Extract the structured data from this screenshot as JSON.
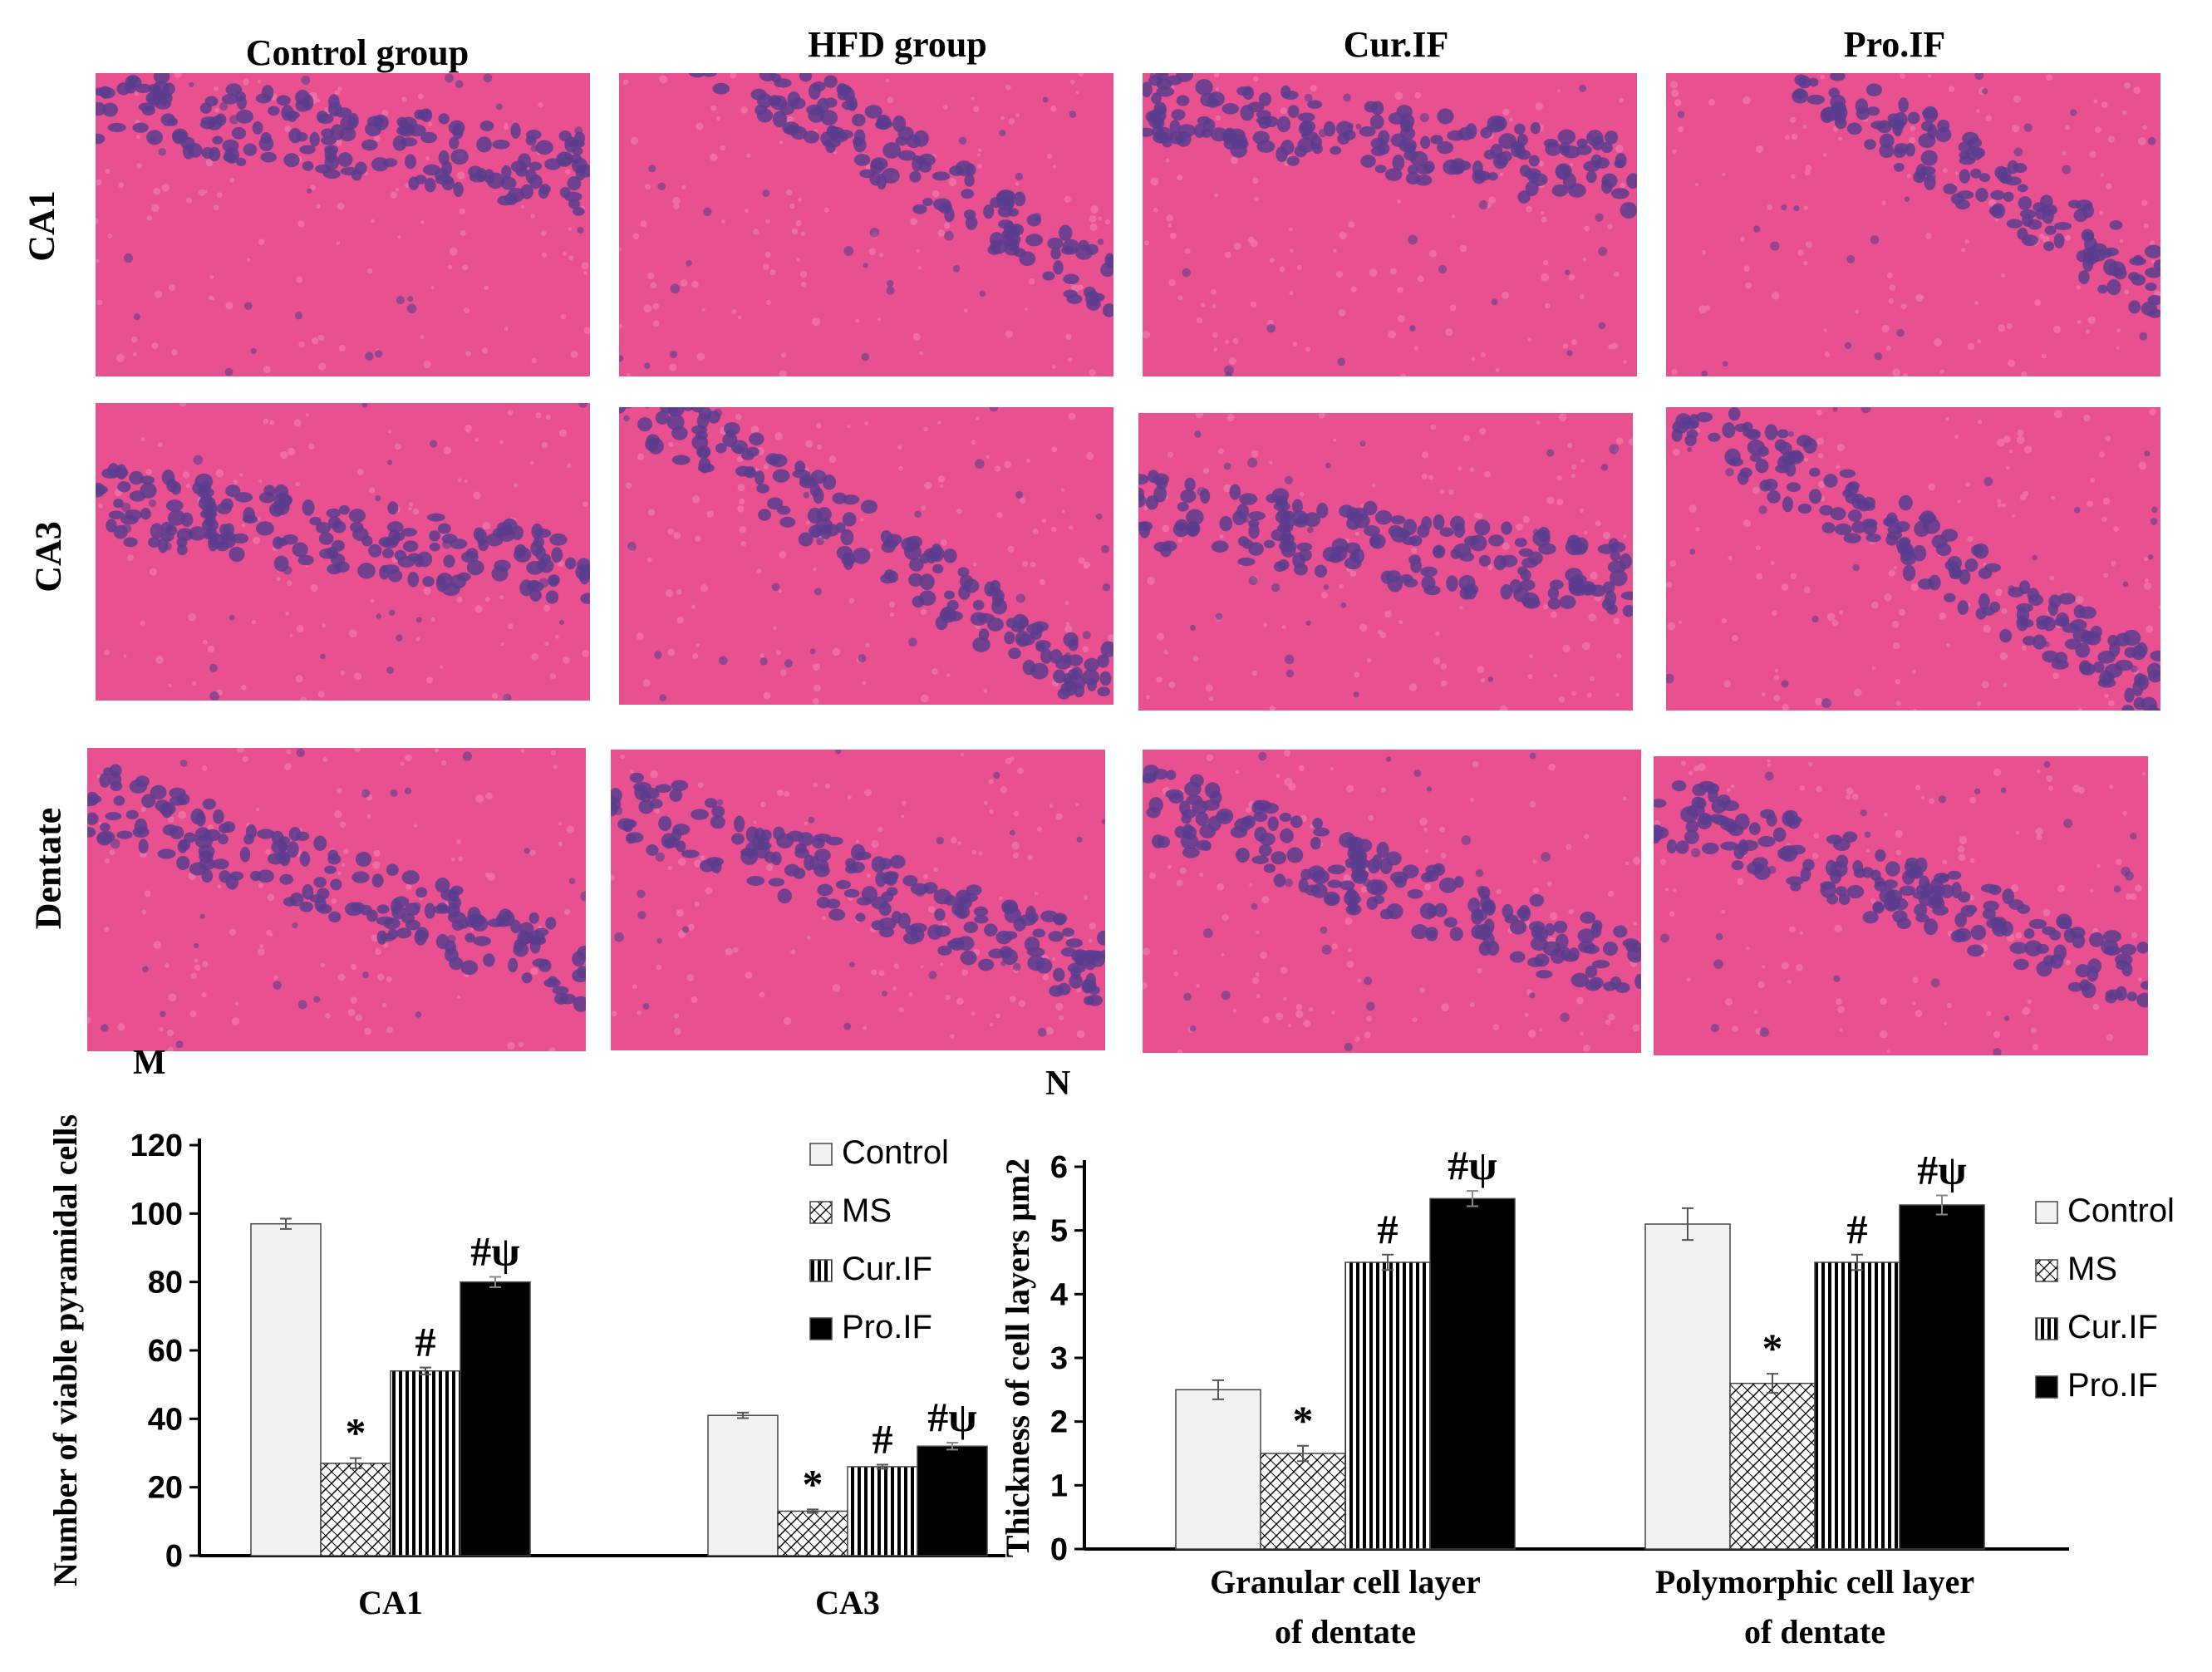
{
  "columns": [
    "Control  group",
    "HFD group",
    "Cur.IF",
    "Pro.IF"
  ],
  "rows": [
    "CA1",
    "CA3",
    "Dentate"
  ],
  "colors": {
    "tissue_bg": "#e8508f",
    "tissue_light": "#f079ac",
    "nuclei": "#5a3d8f",
    "bar_control": "#f2f2f2",
    "bar_black": "#000000"
  },
  "panels": {
    "m": "M",
    "n": "N"
  },
  "chart_data": [
    {
      "type": "bar",
      "panel": "M",
      "categories": [
        "CA1",
        "CA3"
      ],
      "ylabel": "Number of viable pyramidal cells",
      "ylim": [
        0,
        120
      ],
      "yticks": [
        "0",
        "20",
        "40",
        "60",
        "80",
        "100",
        "120"
      ],
      "legend": [
        "Control",
        "MS",
        "Cur.IF",
        "Pro.IF"
      ],
      "legend_position": "top-right",
      "series": [
        {
          "name": "Control",
          "values": [
            97,
            41
          ],
          "errors": [
            1.5,
            0.8
          ],
          "annotations": [
            "",
            ""
          ]
        },
        {
          "name": "MS",
          "values": [
            27,
            13
          ],
          "errors": [
            1.5,
            0.5
          ],
          "annotations": [
            "*",
            "*"
          ]
        },
        {
          "name": "Cur.IF",
          "values": [
            54,
            26
          ],
          "errors": [
            1.0,
            0.6
          ],
          "annotations": [
            "#",
            "#"
          ]
        },
        {
          "name": "Pro.IF",
          "values": [
            80,
            32
          ],
          "errors": [
            1.5,
            1.0
          ],
          "annotations": [
            "#ψ",
            "#ψ"
          ]
        }
      ]
    },
    {
      "type": "bar",
      "panel": "N",
      "categories": [
        "Granular cell layer of dentate",
        "Polymorphic cell layer of dentate"
      ],
      "category_lines": [
        [
          "Granular cell layer",
          "of dentate"
        ],
        [
          "Polymorphic cell layer",
          " of dentate"
        ]
      ],
      "ylabel": "Thickness of cell layers μm2",
      "ylim": [
        0,
        6
      ],
      "yticks": [
        "0",
        "1",
        "2",
        "3",
        "4",
        "5",
        "6"
      ],
      "legend": [
        "Control",
        "MS",
        "Cur.IF",
        "Pro.IF"
      ],
      "legend_position": "right",
      "series": [
        {
          "name": "Control",
          "values": [
            2.5,
            5.1
          ],
          "errors": [
            0.15,
            0.25
          ],
          "annotations": [
            "",
            ""
          ]
        },
        {
          "name": "MS",
          "values": [
            1.5,
            2.6
          ],
          "errors": [
            0.12,
            0.15
          ],
          "annotations": [
            "*",
            "*"
          ]
        },
        {
          "name": "Cur.IF",
          "values": [
            4.5,
            4.5
          ],
          "errors": [
            0.12,
            0.12
          ],
          "annotations": [
            "#",
            "#"
          ]
        },
        {
          "name": "Pro.IF",
          "values": [
            5.5,
            5.4
          ],
          "errors": [
            0.12,
            0.15
          ],
          "annotations": [
            "#ψ",
            "#ψ"
          ]
        }
      ]
    }
  ]
}
